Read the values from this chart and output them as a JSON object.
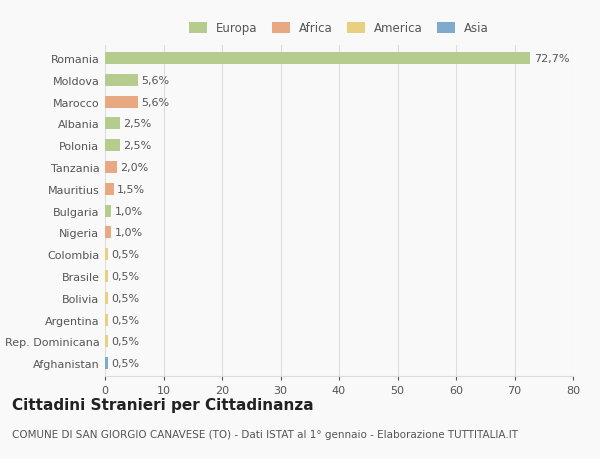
{
  "countries": [
    "Romania",
    "Moldova",
    "Marocco",
    "Albania",
    "Polonia",
    "Tanzania",
    "Mauritius",
    "Bulgaria",
    "Nigeria",
    "Colombia",
    "Brasile",
    "Bolivia",
    "Argentina",
    "Rep. Dominicana",
    "Afghanistan"
  ],
  "values": [
    72.7,
    5.6,
    5.6,
    2.5,
    2.5,
    2.0,
    1.5,
    1.0,
    1.0,
    0.5,
    0.5,
    0.5,
    0.5,
    0.5,
    0.5
  ],
  "continents": [
    "Europa",
    "Europa",
    "Africa",
    "Europa",
    "Europa",
    "Africa",
    "Africa",
    "Europa",
    "Africa",
    "America",
    "America",
    "America",
    "America",
    "America",
    "Asia"
  ],
  "labels": [
    "72,7%",
    "5,6%",
    "5,6%",
    "2,5%",
    "2,5%",
    "2,0%",
    "1,5%",
    "1,0%",
    "1,0%",
    "0,5%",
    "0,5%",
    "0,5%",
    "0,5%",
    "0,5%",
    "0,5%"
  ],
  "colors": {
    "Europa": "#b5cc8e",
    "Africa": "#e8a882",
    "America": "#e8d080",
    "Asia": "#7faacc"
  },
  "legend_labels": [
    "Europa",
    "Africa",
    "America",
    "Asia"
  ],
  "legend_colors": [
    "#b5cc8e",
    "#e8a882",
    "#e8d080",
    "#7faacc"
  ],
  "title": "Cittadini Stranieri per Cittadinanza",
  "subtitle": "COMUNE DI SAN GIORGIO CANAVESE (TO) - Dati ISTAT al 1° gennaio - Elaborazione TUTTITALIA.IT",
  "xlim": [
    0,
    80
  ],
  "xticks": [
    0,
    10,
    20,
    30,
    40,
    50,
    60,
    70,
    80
  ],
  "background_color": "#f9f9f9",
  "grid_color": "#dddddd",
  "text_color": "#555555",
  "label_fontsize": 8,
  "tick_fontsize": 8,
  "title_fontsize": 11,
  "subtitle_fontsize": 7.5
}
